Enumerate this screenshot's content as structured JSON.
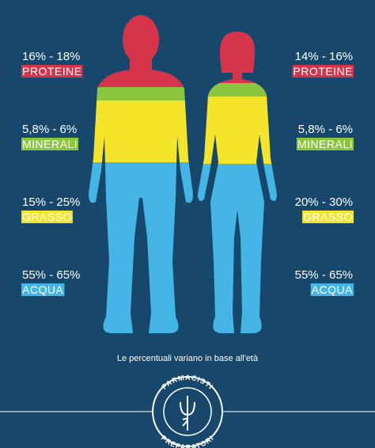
{
  "left": [
    {
      "range": "16% - 18%",
      "label": "PROTEINE"
    },
    {
      "range": "5,8% - 6%",
      "label": "MINERALI"
    },
    {
      "range": "15% - 25%",
      "label": "GRASSO"
    },
    {
      "range": "55% - 65%",
      "label": "ACQUA"
    }
  ],
  "right": [
    {
      "range": "14% - 16%",
      "label": "PROTEINE"
    },
    {
      "range": "5,8% - 6%",
      "label": "MINERALI"
    },
    {
      "range": "20% - 30%",
      "label": "GRASSO"
    },
    {
      "range": "55% - 65%",
      "label": "ACQUA"
    }
  ],
  "note": "Le percentuali variano in base all'età",
  "logo": {
    "top": "FARMACISTI",
    "bottom": "PREPARATORI"
  }
}
